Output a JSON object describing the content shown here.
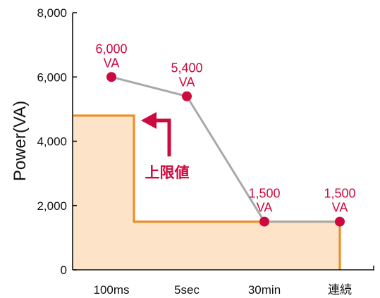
{
  "chart_data": {
    "type": "line",
    "ylabel": "Power(VA)",
    "xlabel": "",
    "categories": [
      "100ms",
      "5sec",
      "30min",
      "連続"
    ],
    "ylim": [
      0,
      8000
    ],
    "yticks": [
      0,
      2000,
      4000,
      6000,
      8000
    ],
    "ytick_labels": [
      "0",
      "2,000",
      "4,000",
      "6,000",
      "8,000"
    ],
    "grid": false,
    "series": [
      {
        "name": "",
        "values": [
          6000,
          5400,
          1500,
          1500
        ],
        "labels": [
          [
            "6,000",
            "VA"
          ],
          [
            "5,400",
            "VA"
          ],
          [
            "1,500",
            "VA"
          ],
          [
            "1,500",
            "VA"
          ]
        ]
      }
    ],
    "limit_region": {
      "label": "上限値",
      "steps": [
        {
          "from": "100ms",
          "to": "5sec",
          "value": 4800
        },
        {
          "from": "5sec",
          "to": "連続",
          "value": 1500
        }
      ]
    },
    "colors": {
      "line": "#a9a9a9",
      "markers": "#cc0a3e",
      "labels": "#cc0a3e",
      "limit_fill": "#fde3c8",
      "limit_stroke": "#f08a1c",
      "axis": "#111111"
    }
  }
}
